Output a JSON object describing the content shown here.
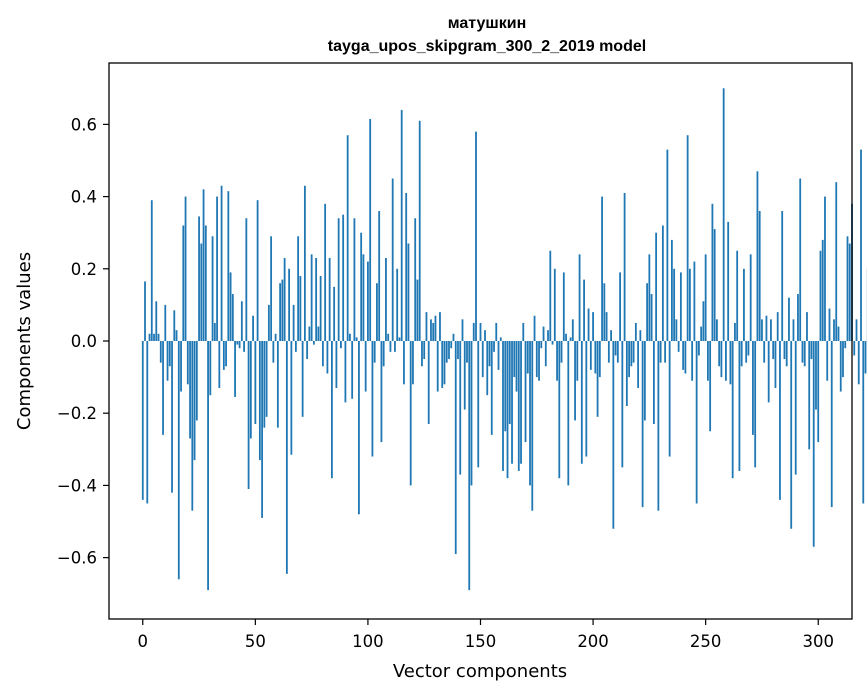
{
  "chart_data": {
    "type": "bar",
    "title_line1": "матушкин",
    "title_line2": "tayga_upos_skipgram_300_2_2019 model",
    "xlabel": "Vector components",
    "ylabel": "Components values",
    "xlim": [
      -15,
      315
    ],
    "ylim": [
      -0.77,
      0.77
    ],
    "xticks": [
      {
        "value": 0,
        "label": "0"
      },
      {
        "value": 50,
        "label": "50"
      },
      {
        "value": 100,
        "label": "100"
      },
      {
        "value": 150,
        "label": "150"
      },
      {
        "value": 200,
        "label": "200"
      },
      {
        "value": 250,
        "label": "250"
      },
      {
        "value": 300,
        "label": "300"
      }
    ],
    "yticks": [
      {
        "value": -0.6,
        "label": "−0.6"
      },
      {
        "value": -0.4,
        "label": "−0.4"
      },
      {
        "value": -0.2,
        "label": "−0.2"
      },
      {
        "value": 0.0,
        "label": "0.0"
      },
      {
        "value": 0.2,
        "label": "0.2"
      },
      {
        "value": 0.4,
        "label": "0.4"
      },
      {
        "value": 0.6,
        "label": "0.6"
      }
    ],
    "bar_color": "#1f77b4",
    "values": [
      -0.44,
      0.165,
      -0.45,
      0.02,
      0.39,
      0.02,
      0.11,
      0.02,
      -0.06,
      -0.26,
      0.1,
      -0.11,
      -0.07,
      -0.42,
      0.085,
      0.03,
      -0.66,
      -0.14,
      0.32,
      0.4,
      -0.12,
      -0.27,
      -0.47,
      -0.33,
      -0.22,
      0.345,
      0.27,
      0.42,
      0.32,
      -0.69,
      -0.15,
      0.29,
      0.05,
      0.4,
      -0.13,
      0.43,
      -0.08,
      -0.07,
      0.415,
      0.19,
      0.13,
      -0.155,
      -0.01,
      -0.02,
      0.11,
      -0.03,
      0.34,
      -0.41,
      -0.27,
      0.07,
      -0.23,
      0.39,
      -0.33,
      -0.49,
      -0.24,
      -0.21,
      0.1,
      0.29,
      -0.06,
      0.02,
      -0.24,
      0.16,
      0.17,
      0.23,
      -0.645,
      0.2,
      -0.315,
      0.1,
      -0.03,
      0.29,
      0.18,
      -0.21,
      0.43,
      -0.05,
      0.04,
      0.24,
      -0.01,
      0.23,
      0.04,
      0.18,
      -0.07,
      0.38,
      -0.09,
      0.23,
      -0.38,
      0.15,
      -0.13,
      0.34,
      -0.02,
      0.35,
      -0.17,
      0.57,
      0.02,
      -0.16,
      0.34,
      0.01,
      -0.48,
      0.3,
      0.24,
      -0.14,
      0.22,
      0.615,
      -0.32,
      -0.06,
      0.16,
      0.36,
      -0.28,
      -0.07,
      0.23,
      0.02,
      -0.03,
      0.45,
      -0.03,
      0.2,
      0.01,
      0.64,
      -0.12,
      0.41,
      0.27,
      -0.4,
      -0.12,
      0.34,
      0.17,
      0.61,
      -0.07,
      -0.05,
      0.08,
      -0.23,
      0.06,
      0.05,
      0.07,
      -0.14,
      0.08,
      -0.13,
      -0.12,
      -0.06,
      -0.05,
      -0.02,
      0.02,
      -0.59,
      -0.05,
      -0.37,
      0.06,
      -0.19,
      -0.06,
      -0.69,
      -0.4,
      0.05,
      0.58,
      -0.35,
      0.05,
      -0.1,
      0.03,
      -0.15,
      -0.07,
      -0.26,
      -0.03,
      0.05,
      -0.08,
      0.01,
      -0.36,
      -0.25,
      -0.38,
      -0.23,
      -0.34,
      -0.1,
      -0.14,
      -0.36,
      -0.34,
      0.05,
      -0.28,
      -0.09,
      -0.4,
      -0.47,
      0.07,
      -0.1,
      -0.11,
      -0.02,
      0.04,
      -0.07,
      0.03,
      0.25,
      -0.01,
      0.2,
      -0.11,
      -0.38,
      -0.06,
      0.19,
      0.02,
      -0.4,
      0.01,
      0.06,
      -0.22,
      -0.11,
      0.24,
      -0.34,
      0.17,
      -0.32,
      0.09,
      -0.08,
      0.08,
      -0.09,
      -0.21,
      -0.1,
      0.4,
      0.16,
      0.08,
      -0.06,
      0.03,
      -0.52,
      -0.04,
      -0.06,
      0.19,
      -0.35,
      0.41,
      -0.18,
      -0.1,
      -0.07,
      -0.06,
      0.05,
      -0.13,
      0.03,
      -0.46,
      -0.22,
      0.16,
      0.24,
      0.13,
      -0.23,
      0.3,
      -0.47,
      -0.06,
      0.32,
      -0.06,
      0.53,
      -0.32,
      0.28,
      0.2,
      0.06,
      -0.03,
      0.19,
      -0.08,
      -0.09,
      0.57,
      0.2,
      -0.11,
      0.22,
      -0.45,
      -0.04,
      0.04,
      0.11,
      0.24,
      -0.11,
      -0.25,
      0.38,
      0.31,
      0.06,
      -0.07,
      -0.1,
      0.7,
      -0.11,
      0.33,
      -0.12,
      -0.38,
      0.05,
      0.25,
      -0.36,
      -0.07,
      0.2,
      -0.06,
      -0.04,
      0.24,
      -0.26,
      -0.35,
      0.47,
      0.36,
      0.06,
      -0.06,
      0.07,
      -0.17,
      0.06,
      -0.05,
      -0.13,
      0.08,
      -0.44,
      0.36,
      -0.05,
      -0.07,
      0.12,
      -0.52,
      0.06,
      -0.37,
      0.13,
      0.45,
      -0.06,
      -0.07,
      0.08,
      -0.3,
      -0.05,
      -0.57,
      -0.19,
      -0.28,
      0.25,
      0.28,
      0.4,
      -0.11,
      0.09,
      -0.46,
      0.06,
      0.44,
      0.04,
      -0.14,
      -0.1,
      -0.02,
      0.29,
      0.27,
      0.38,
      -0.04,
      0.06,
      -0.12,
      0.53,
      -0.45,
      -0.09,
      0.2,
      0.03
    ]
  }
}
